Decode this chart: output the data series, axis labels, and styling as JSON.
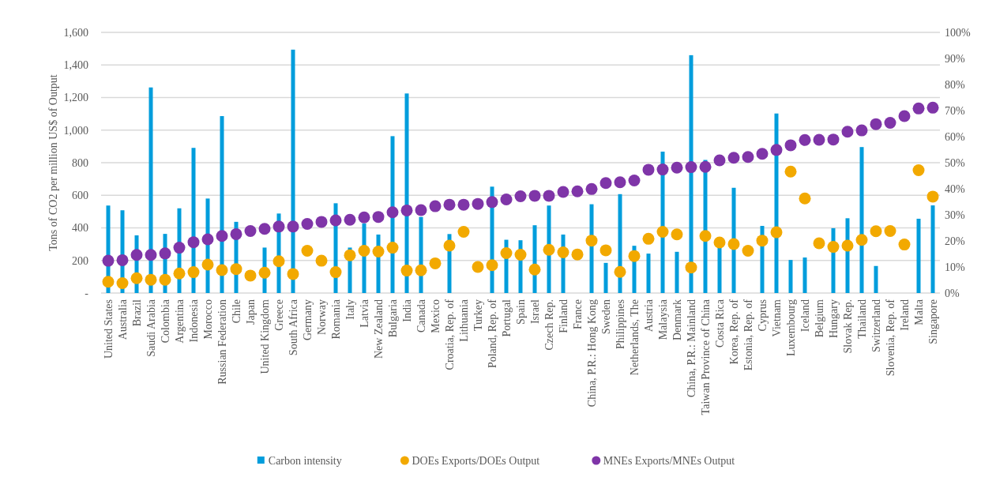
{
  "chart_data": {
    "type": "bar",
    "ylabel": "Tons of CO2 per million US$ of Output",
    "categories": [
      "United States",
      "Australia",
      "Brazil",
      "Saudi Arabia",
      "Colombia",
      "Argentina",
      "Indonesia",
      "Morocco",
      "Russian Federation",
      "Chile",
      "Japan",
      "United Kingdom",
      "Greece",
      "South Africa",
      "Germany",
      "Norway",
      "Romania",
      "Italy",
      "Latvia",
      "New Zealand",
      "Bulgaria",
      "India",
      "Canada",
      "Mexico",
      "Croatia, Rep. of",
      "Lithuania",
      "Turkey",
      "Poland, Rep. of",
      "Portugal",
      "Spain",
      "Israel",
      "Czech Rep.",
      "Finland",
      "France",
      "China, P.R.: Hong Kong",
      "Sweden",
      "Philippines",
      "Netherlands, The",
      "Austria",
      "Malaysia",
      "Denmark",
      "China, P.R.: Mainland",
      "Taiwan Province of China",
      "Costa Rica",
      "Korea, Rep. of",
      "Estonia, Rep. of",
      "Cyprus",
      "Vietnam",
      "Luxembourg",
      "Iceland",
      "Belgium",
      "Hungary",
      "Slovak Rep.",
      "Thailand",
      "Switzerland",
      "Slovenia, Rep. of",
      "Ireland",
      "Malta",
      "Singapore"
    ],
    "series": [
      {
        "name": "Carbon intensity",
        "color": "#009ddc",
        "values": [
          537,
          508,
          354,
          1262,
          363,
          520,
          891,
          580,
          1086,
          437,
          null,
          279,
          488,
          1494,
          null,
          null,
          551,
          279,
          427,
          359,
          963,
          1225,
          467,
          null,
          362,
          null,
          null,
          653,
          327,
          324,
          416,
          537,
          359,
          null,
          545,
          185,
          607,
          290,
          242,
          868,
          253,
          1460,
          817,
          290,
          646,
          null,
          412,
          1102,
          203,
          218,
          null,
          398,
          459,
          896,
          166,
          null,
          null,
          456,
          538
        ]
      },
      {
        "name": "DOEs Exports/DOEs Output",
        "type": "scatter",
        "axis": "y2",
        "color": "#f2a900",
        "values": [
          4.3,
          3.8,
          5.7,
          5.1,
          5.1,
          7.5,
          8.0,
          10.9,
          8.8,
          9.2,
          6.7,
          7.8,
          12.2,
          7.3,
          16.2,
          12.4,
          8.0,
          14.5,
          16.2,
          15.9,
          17.4,
          8.6,
          8.7,
          11.4,
          18.2,
          23.5,
          10.0,
          10.7,
          15.3,
          14.7,
          9.0,
          16.6,
          15.6,
          14.8,
          20.1,
          16.4,
          8.1,
          14.2,
          20.8,
          23.5,
          22.5,
          9.8,
          21.9,
          19.4,
          18.8,
          16.2,
          20.1,
          23.3,
          46.6,
          36.3,
          19.1,
          17.7,
          18.2,
          20.4,
          23.7,
          23.8,
          18.6,
          47.1,
          37.0
        ]
      },
      {
        "name": "MNEs Exports/MNEs Output",
        "type": "scatter",
        "axis": "y2",
        "color": "#7f35a8",
        "values": [
          12.4,
          12.6,
          14.6,
          14.6,
          15.2,
          17.4,
          19.5,
          20.6,
          21.9,
          22.6,
          23.8,
          24.6,
          25.5,
          25.5,
          26.5,
          27.3,
          27.9,
          28.1,
          29.0,
          29.2,
          31.0,
          31.7,
          31.8,
          33.3,
          33.9,
          33.9,
          34.2,
          34.9,
          35.9,
          37.1,
          37.3,
          37.3,
          38.8,
          39.0,
          39.9,
          42.2,
          42.5,
          43.2,
          47.3,
          47.4,
          48.1,
          48.3,
          48.4,
          50.9,
          51.9,
          52.2,
          53.4,
          54.9,
          56.7,
          58.7,
          58.8,
          58.9,
          61.9,
          62.4,
          64.8,
          65.3,
          67.9,
          70.8,
          71.1
        ]
      }
    ],
    "ylim": [
      0,
      1600
    ],
    "yticks": [
      {
        "value": 0,
        "label": "-"
      },
      200,
      400,
      600,
      800,
      {
        "value": 1000,
        "label": "1,000"
      },
      {
        "value": 1200,
        "label": "1,200"
      },
      {
        "value": 1400,
        "label": "1,400"
      },
      {
        "value": 1600,
        "label": "1,600"
      }
    ],
    "y2lim": [
      0,
      100
    ],
    "y2ticks": [
      {
        "value": 0,
        "label": "0%"
      },
      {
        "value": 10,
        "label": "10%"
      },
      {
        "value": 20,
        "label": "20%"
      },
      {
        "value": 30,
        "label": "30%"
      },
      {
        "value": 40,
        "label": "40%"
      },
      {
        "value": 50,
        "label": "50%"
      },
      {
        "value": 60,
        "label": "60%"
      },
      {
        "value": 70,
        "label": "70%"
      },
      {
        "value": 80,
        "label": "80%"
      },
      {
        "value": 90,
        "label": "90%"
      },
      {
        "value": 100,
        "label": "100%"
      }
    ],
    "grid": "y",
    "legend": "bottom",
    "marker": "circle"
  }
}
